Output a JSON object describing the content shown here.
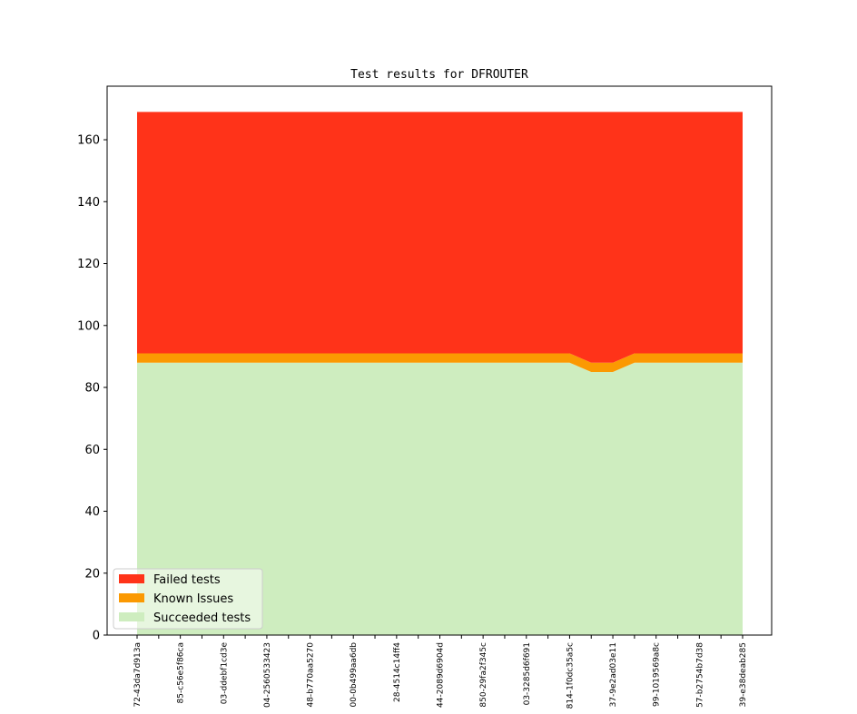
{
  "chart_data": {
    "type": "stacked_area",
    "title": "Test results for DFROUTER",
    "categories": [
      "72-43da7d913a",
      null,
      "85-c56e5f86ca",
      null,
      "03-ddebf1cd3e",
      null,
      "04-2560533423",
      null,
      "48-b770aa5270",
      null,
      "00-0b499aa6db",
      null,
      "28-4514c14ff4",
      null,
      "44-2089d6904d",
      null,
      "850-29fa2f345c",
      null,
      "03-3285d6f691",
      null,
      "814-1f0dc35a5c",
      null,
      "37-9e2ad03e11",
      null,
      "99-1019569a8c",
      null,
      "57-b2754b7d38",
      null,
      "39-e38deab285"
    ],
    "series": [
      {
        "name": "Failed tests",
        "color": "#ff3319",
        "values": [
          78,
          78,
          78,
          78,
          78,
          78,
          78,
          78,
          78,
          78,
          78,
          78,
          78,
          78,
          78,
          78,
          78,
          78,
          78,
          78,
          78,
          81,
          81,
          78,
          78,
          78,
          78,
          78,
          78
        ]
      },
      {
        "name": "Known Issues",
        "color": "#fb9902",
        "values": [
          3,
          3,
          3,
          3,
          3,
          3,
          3,
          3,
          3,
          3,
          3,
          3,
          3,
          3,
          3,
          3,
          3,
          3,
          3,
          3,
          3,
          3,
          3,
          3,
          3,
          3,
          3,
          3,
          3
        ]
      },
      {
        "name": "Succeeded tests",
        "color": "#ceedbf",
        "values": [
          88,
          88,
          88,
          88,
          88,
          88,
          88,
          88,
          88,
          88,
          88,
          88,
          88,
          88,
          88,
          88,
          88,
          88,
          88,
          88,
          88,
          85,
          85,
          88,
          88,
          88,
          88,
          88,
          88
        ]
      }
    ],
    "ylim": [
      0,
      177.3
    ],
    "yticks": [
      0,
      20,
      40,
      60,
      80,
      100,
      120,
      140,
      160
    ],
    "legend": "lower left"
  }
}
